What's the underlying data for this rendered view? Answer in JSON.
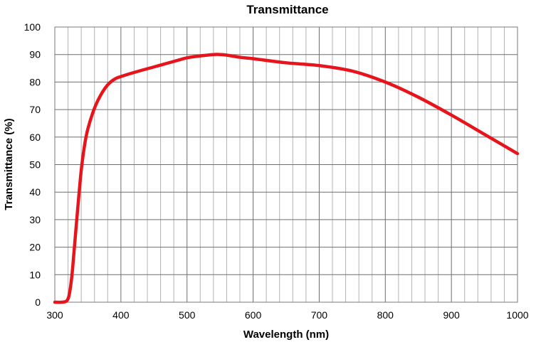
{
  "chart_data": {
    "type": "line",
    "title": "Transmittance",
    "xlabel": "Wavelength (nm)",
    "ylabel": "Transmittance (%)",
    "xlim": [
      300,
      1000
    ],
    "ylim": [
      0,
      100
    ],
    "x_ticks": [
      300,
      400,
      500,
      600,
      700,
      800,
      900,
      1000
    ],
    "y_ticks": [
      0,
      10,
      20,
      30,
      40,
      50,
      60,
      70,
      80,
      90,
      100
    ],
    "grid": true,
    "minor_x_step": 20,
    "legend": "none",
    "series": [
      {
        "color": "#e8141c",
        "x": [
          300,
          310,
          318,
          322,
          326,
          330,
          335,
          340,
          345,
          350,
          360,
          370,
          380,
          390,
          400,
          420,
          450,
          480,
          500,
          520,
          540,
          550,
          560,
          580,
          600,
          650,
          700,
          750,
          800,
          850,
          900,
          950,
          1000
        ],
        "y": [
          0,
          0,
          0.5,
          3,
          10,
          21,
          35,
          48,
          57,
          63,
          70.5,
          75.5,
          79,
          81,
          82,
          83.5,
          85.5,
          87.5,
          88.8,
          89.5,
          90,
          90,
          89.8,
          89,
          88.5,
          87,
          86,
          84,
          80,
          74.5,
          68,
          61,
          54
        ]
      }
    ]
  }
}
